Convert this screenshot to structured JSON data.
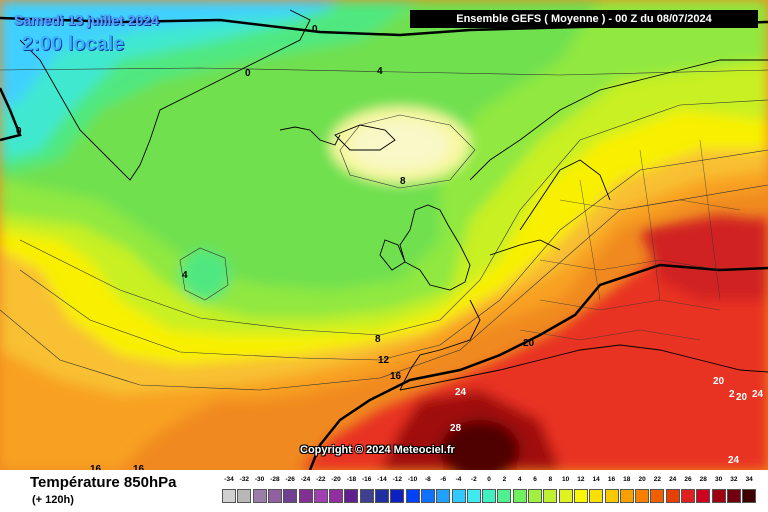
{
  "header": {
    "title": "Ensemble GEFS  ( Moyenne )  -  00 Z du 08/07/2024",
    "date": "Samedi 13 juillet 2024",
    "time": "2:00 locale"
  },
  "copyright": "Copyright © 2024 Meteociel.fr",
  "footer": {
    "title": "Température 850hPa",
    "subtitle": "(+ 120h)"
  },
  "contour_labels": [
    {
      "text": "0"
    },
    {
      "text": "0"
    },
    {
      "text": "0"
    },
    {
      "text": "4"
    },
    {
      "text": "8"
    },
    {
      "text": "4"
    },
    {
      "text": "8"
    },
    {
      "text": "12"
    },
    {
      "text": "16"
    },
    {
      "text": "20"
    },
    {
      "text": "24"
    },
    {
      "text": "28"
    },
    {
      "text": "20"
    },
    {
      "text": "20"
    },
    {
      "text": "24"
    },
    {
      "text": "24"
    },
    {
      "text": "2"
    },
    {
      "text": "16"
    },
    {
      "text": "16"
    }
  ],
  "legend": {
    "values": [
      "-34",
      "-32",
      "-30",
      "-28",
      "-26",
      "-24",
      "-22",
      "-20",
      "-18",
      "-16",
      "-14",
      "-12",
      "-10",
      "-8",
      "-6",
      "-4",
      "-2",
      "0",
      "2",
      "4",
      "6",
      "8",
      "10",
      "12",
      "14",
      "16",
      "18",
      "20",
      "22",
      "24",
      "26",
      "28",
      "30",
      "32",
      "34"
    ],
    "colors": [
      "#d0d0d0",
      "#b8b8b8",
      "#9a80a8",
      "#9060a0",
      "#704090",
      "#803090",
      "#a040b0",
      "#9030a0",
      "#602090",
      "#404090",
      "#2030a0",
      "#1020c0",
      "#0040ff",
      "#1070ff",
      "#20a0ff",
      "#30c8ff",
      "#40e8f0",
      "#40f0c0",
      "#50f090",
      "#70f060",
      "#a0f040",
      "#c0f030",
      "#e0f020",
      "#f8f800",
      "#f8e000",
      "#f8c800",
      "#f8a000",
      "#f88000",
      "#f06000",
      "#e84000",
      "#e02020",
      "#d00020",
      "#a00010",
      "#700010",
      "#400000"
    ]
  },
  "colors": {
    "header_bg": "#000000",
    "date_text": "#5aa0ff",
    "time_text": "#3bb0ff"
  }
}
